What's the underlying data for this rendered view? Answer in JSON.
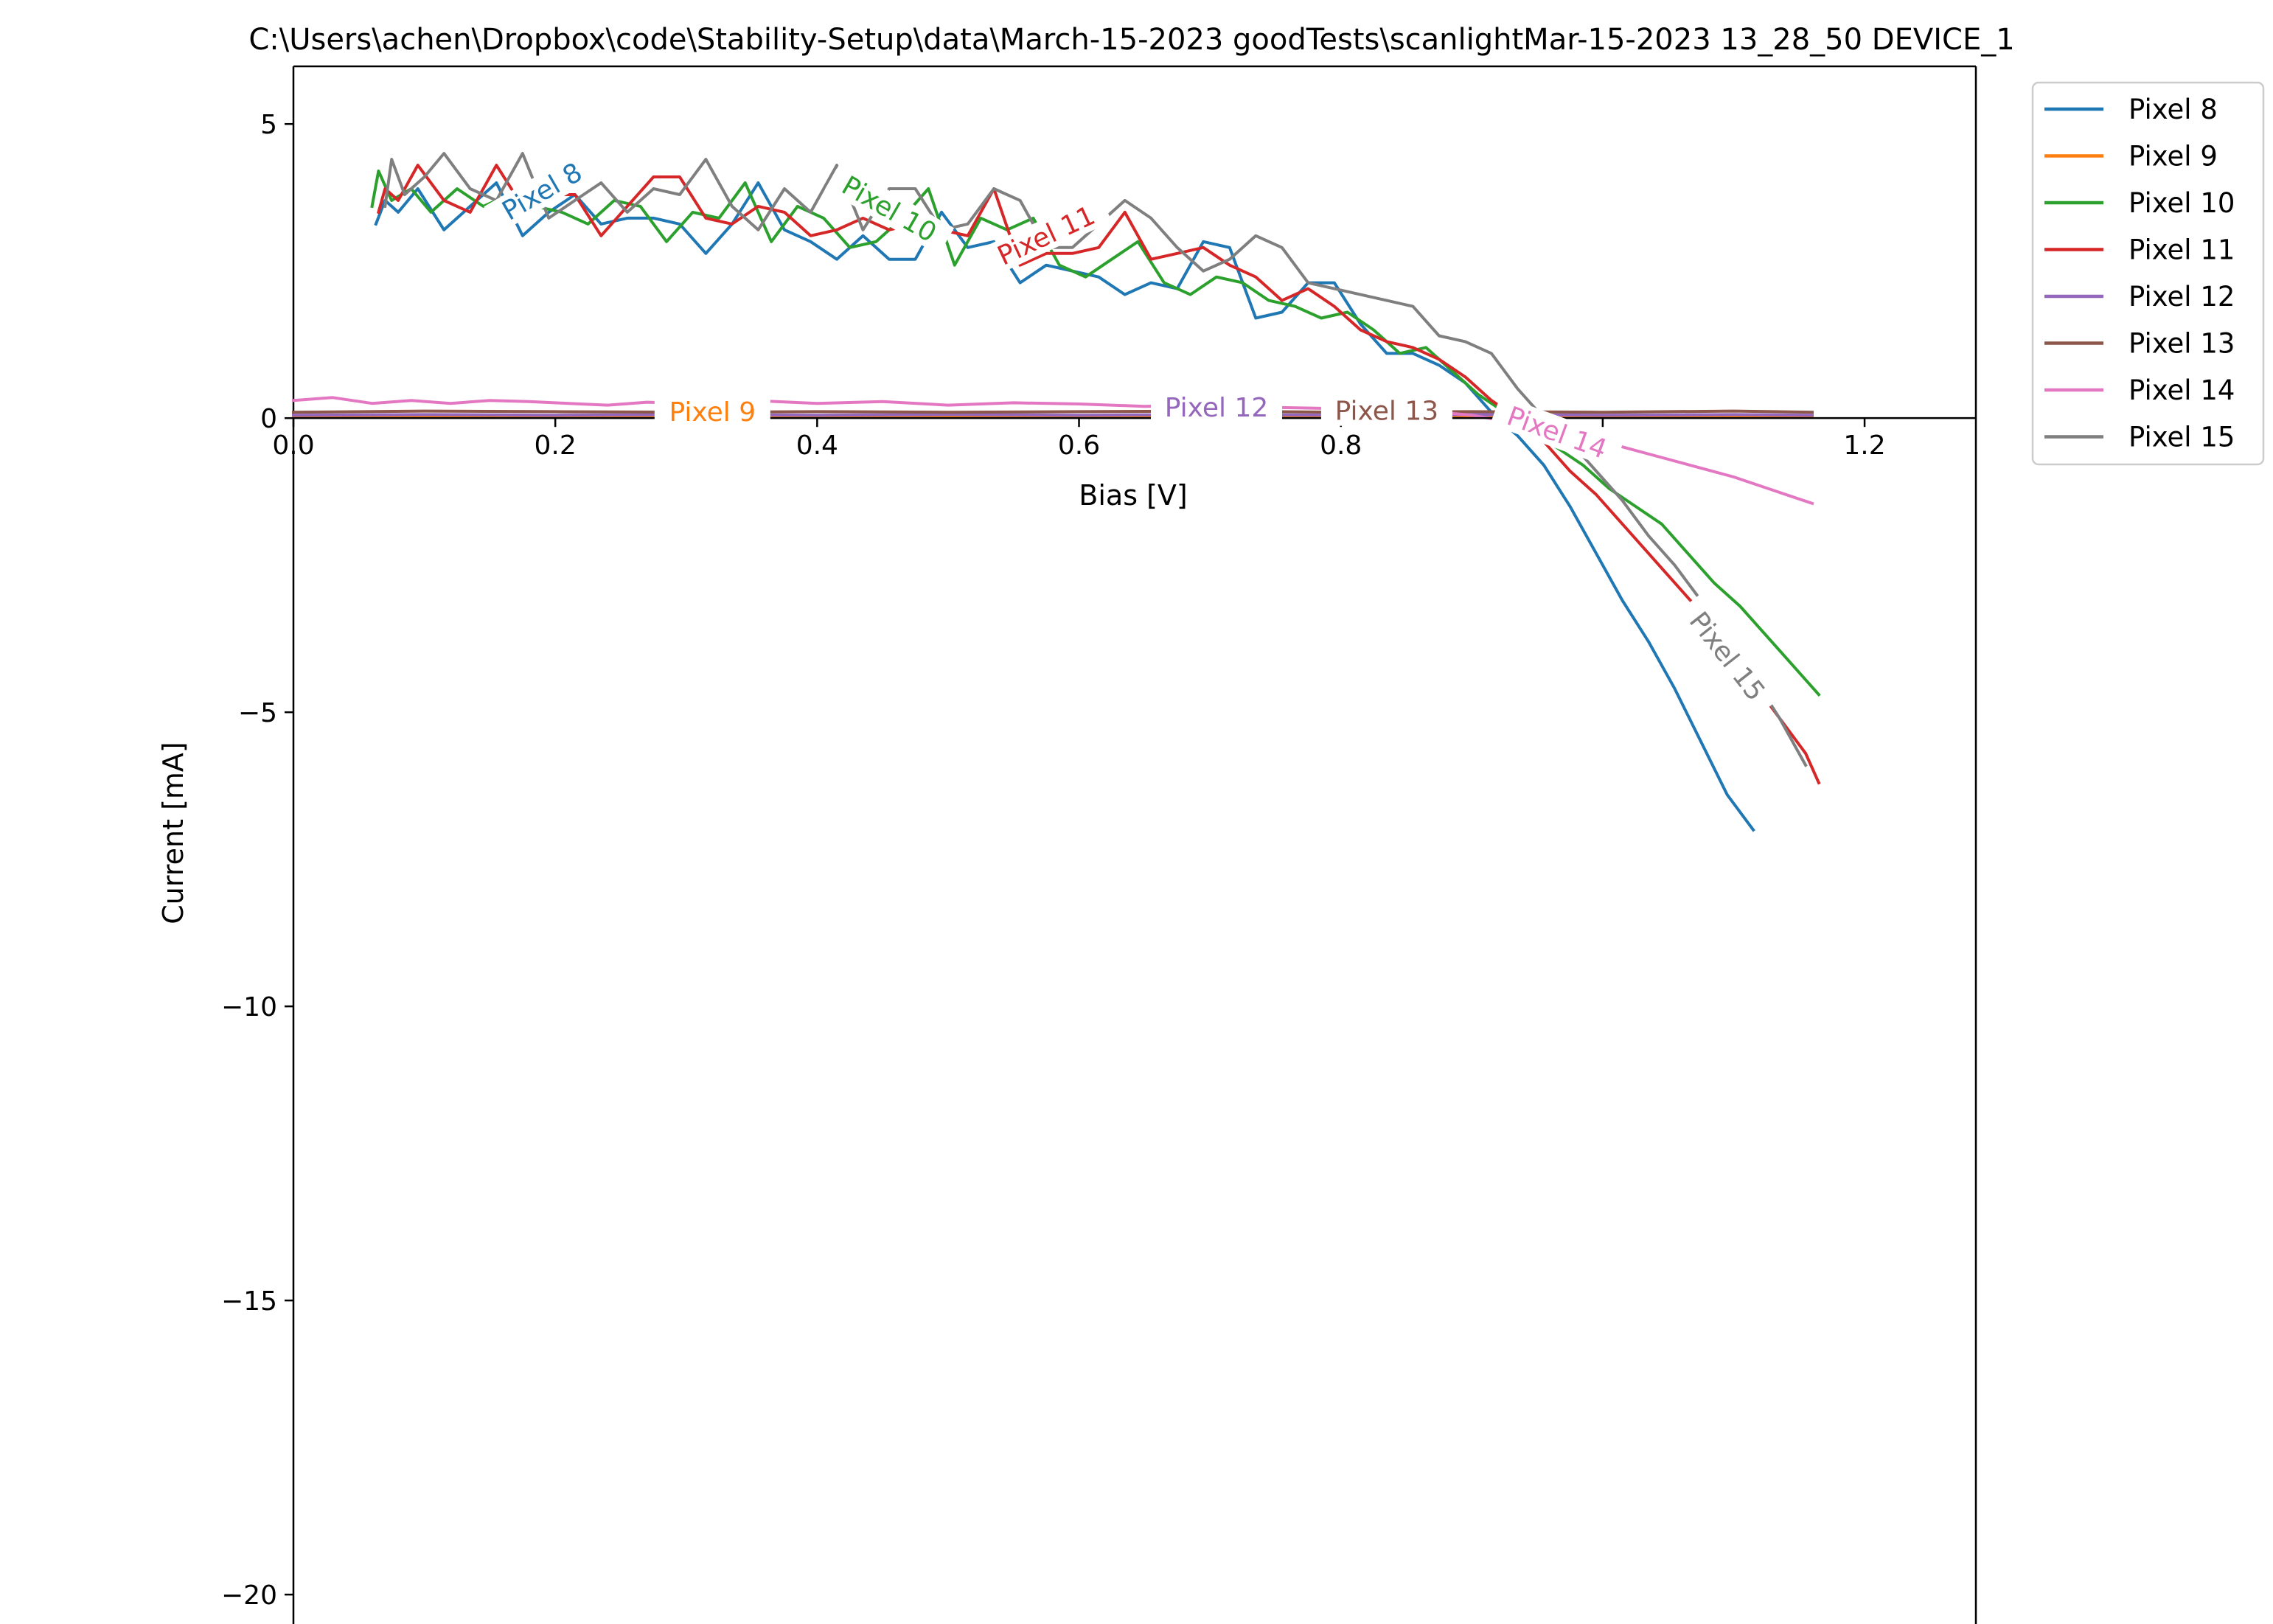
{
  "chart_data": {
    "type": "line",
    "title": "C:\\Users\\achen\\Dropbox\\code\\Stability-Setup\\data\\March-15-2023 goodTests\\scanlightMar-15-2023 13_28_50 DEVICE_1",
    "xlabel": "Bias [V]",
    "ylabel": "Current [mA]",
    "xlim": [
      0.0,
      1.285
    ],
    "ylim": [
      -20.5,
      5.98
    ],
    "xticks": [
      0.0,
      0.2,
      0.4,
      0.6,
      0.8,
      1.0,
      1.2
    ],
    "xtick_labels": [
      "0.0",
      "0.2",
      "0.4",
      "0.6",
      "0.8",
      "",
      "1.2"
    ],
    "yticks": [
      5,
      0,
      -5,
      -10,
      -15,
      -20
    ],
    "ytick_labels": [
      "5",
      "0",
      "−5",
      "−10",
      "−15",
      "−20"
    ],
    "legend_position": "outside-top-right",
    "series": [
      {
        "name": "Pixel 8",
        "color": "#1f77b4",
        "inline_label": {
          "text": "Pixel 8",
          "x": 0.19,
          "y": 3.85,
          "angle": -30
        },
        "x": [
          0.063,
          0.07,
          0.08,
          0.095,
          0.115,
          0.135,
          0.155,
          0.175,
          0.195,
          0.215,
          0.235,
          0.255,
          0.275,
          0.295,
          0.315,
          0.335,
          0.355,
          0.375,
          0.395,
          0.415,
          0.435,
          0.455,
          0.475,
          0.495,
          0.515,
          0.535,
          0.555,
          0.575,
          0.595,
          0.615,
          0.635,
          0.655,
          0.675,
          0.695,
          0.715,
          0.735,
          0.755,
          0.775,
          0.795,
          0.815,
          0.835,
          0.855,
          0.875,
          0.895,
          0.915,
          0.935,
          0.955,
          0.975,
          0.995,
          1.015,
          1.035,
          1.055,
          1.075,
          1.095,
          1.115,
          1.135,
          1.155
        ],
        "y": [
          3.3,
          3.7,
          3.5,
          3.9,
          3.2,
          3.6,
          4.0,
          3.1,
          3.5,
          3.8,
          3.3,
          3.4,
          3.4,
          3.3,
          2.8,
          3.3,
          4.0,
          3.2,
          3.0,
          2.7,
          3.1,
          2.7,
          2.7,
          3.5,
          2.9,
          3.0,
          2.3,
          2.6,
          2.5,
          2.4,
          2.1,
          2.3,
          2.2,
          3.0,
          2.9,
          1.7,
          1.8,
          2.3,
          2.3,
          1.6,
          1.1,
          1.1,
          0.9,
          0.6,
          0.1,
          -0.3,
          -0.8,
          -1.5,
          -2.3,
          -3.1,
          -3.8,
          -4.6,
          -5.5,
          -6.4,
          -7.0,
          null,
          null
        ]
      },
      {
        "name": "Pixel 9",
        "color": "#ff7f0e",
        "inline_label": {
          "text": "Pixel 9",
          "x": 0.32,
          "y": 0.1,
          "angle": 0
        },
        "x": [
          0.0,
          0.1,
          0.2,
          0.3,
          0.4,
          0.5,
          0.6,
          0.7,
          0.8,
          0.9,
          1.0,
          1.1,
          1.16
        ],
        "y": [
          0.02,
          0.04,
          0.03,
          0.03,
          0.02,
          0.03,
          0.02,
          0.03,
          0.02,
          0.04,
          0.03,
          0.04,
          0.03
        ]
      },
      {
        "name": "Pixel 10",
        "color": "#2ca02c",
        "inline_label": {
          "text": "Pixel 10",
          "x": 0.455,
          "y": 3.55,
          "angle": 30
        },
        "x": [
          0.06,
          0.065,
          0.075,
          0.09,
          0.105,
          0.125,
          0.145,
          0.165,
          0.185,
          0.205,
          0.225,
          0.245,
          0.265,
          0.285,
          0.305,
          0.325,
          0.345,
          0.365,
          0.385,
          0.405,
          0.425,
          0.445,
          0.465,
          0.485,
          0.505,
          0.525,
          0.545,
          0.565,
          0.585,
          0.605,
          0.625,
          0.645,
          0.665,
          0.685,
          0.705,
          0.725,
          0.745,
          0.765,
          0.785,
          0.805,
          0.825,
          0.845,
          0.865,
          0.885,
          0.905,
          0.925,
          0.945,
          0.965,
          0.985,
          1.005,
          1.025,
          1.045,
          1.065,
          1.085,
          1.105,
          1.125,
          1.145,
          1.165
        ],
        "y": [
          3.6,
          4.2,
          3.7,
          3.9,
          3.5,
          3.9,
          3.6,
          3.8,
          3.6,
          3.5,
          3.3,
          3.7,
          3.6,
          3.0,
          3.5,
          3.4,
          4.0,
          3.0,
          3.6,
          3.4,
          2.9,
          3.0,
          3.4,
          3.9,
          2.6,
          3.4,
          3.2,
          3.4,
          2.6,
          2.4,
          2.7,
          3.0,
          2.3,
          2.1,
          2.4,
          2.3,
          2.0,
          1.9,
          1.7,
          1.8,
          1.5,
          1.1,
          1.2,
          0.8,
          0.4,
          0.1,
          -0.2,
          -0.5,
          -0.8,
          -1.2,
          -1.5,
          -1.8,
          -2.3,
          -2.8,
          -3.2,
          -3.7,
          -4.2,
          -4.7
        ]
      },
      {
        "name": "Pixel 11",
        "color": "#d62728",
        "inline_label": {
          "text": "Pixel 11",
          "x": 0.575,
          "y": 3.1,
          "angle": -25
        },
        "x": [
          0.065,
          0.07,
          0.08,
          0.095,
          0.115,
          0.135,
          0.155,
          0.175,
          0.195,
          0.215,
          0.235,
          0.255,
          0.275,
          0.295,
          0.315,
          0.335,
          0.355,
          0.375,
          0.395,
          0.415,
          0.435,
          0.455,
          0.475,
          0.495,
          0.515,
          0.535,
          0.555,
          0.575,
          0.595,
          0.615,
          0.635,
          0.655,
          0.675,
          0.695,
          0.715,
          0.735,
          0.755,
          0.775,
          0.795,
          0.815,
          0.835,
          0.855,
          0.875,
          0.895,
          0.915,
          0.935,
          0.955,
          0.975,
          0.995,
          1.015,
          1.035,
          1.055,
          1.075,
          1.095,
          1.115,
          1.135,
          1.155,
          1.165
        ],
        "y": [
          3.5,
          3.9,
          3.7,
          4.3,
          3.7,
          3.5,
          4.3,
          3.6,
          3.8,
          3.8,
          3.1,
          3.6,
          4.1,
          4.1,
          3.4,
          3.3,
          3.6,
          3.5,
          3.1,
          3.2,
          3.4,
          3.2,
          3.3,
          3.2,
          3.1,
          3.9,
          2.6,
          2.8,
          2.8,
          2.9,
          3.5,
          2.7,
          2.8,
          2.9,
          2.6,
          2.4,
          2.0,
          2.2,
          1.9,
          1.5,
          1.3,
          1.2,
          1.0,
          0.7,
          0.3,
          0.0,
          -0.4,
          -0.9,
          -1.3,
          -1.8,
          -2.3,
          -2.8,
          -3.3,
          -3.9,
          -4.5,
          -5.1,
          -5.7,
          -6.2
        ]
      },
      {
        "name": "Pixel 12",
        "color": "#9467bd",
        "inline_label": {
          "text": "Pixel 12",
          "x": 0.705,
          "y": 0.18,
          "angle": 0
        },
        "x": [
          0.0,
          0.1,
          0.2,
          0.3,
          0.4,
          0.5,
          0.6,
          0.7,
          0.8,
          0.9,
          1.0,
          1.1,
          1.16
        ],
        "y": [
          0.05,
          0.06,
          0.05,
          0.06,
          0.05,
          0.06,
          0.05,
          0.06,
          0.05,
          0.06,
          0.05,
          0.06,
          0.05
        ]
      },
      {
        "name": "Pixel 13",
        "color": "#8c564b",
        "inline_label": {
          "text": "Pixel 13",
          "x": 0.835,
          "y": 0.12,
          "angle": 0
        },
        "x": [
          0.0,
          0.1,
          0.2,
          0.3,
          0.4,
          0.5,
          0.6,
          0.7,
          0.8,
          0.9,
          1.0,
          1.1,
          1.16
        ],
        "y": [
          0.1,
          0.12,
          0.11,
          0.1,
          0.11,
          0.1,
          0.11,
          0.12,
          0.1,
          0.11,
          0.1,
          0.12,
          0.1
        ]
      },
      {
        "name": "Pixel 14",
        "color": "#e377c2",
        "inline_label": {
          "text": "Pixel 14",
          "x": 0.965,
          "y": -0.25,
          "angle": 20
        },
        "x": [
          0.0,
          0.03,
          0.06,
          0.09,
          0.12,
          0.15,
          0.18,
          0.21,
          0.24,
          0.27,
          0.3,
          0.35,
          0.4,
          0.45,
          0.5,
          0.55,
          0.6,
          0.65,
          0.7,
          0.75,
          0.8,
          0.85,
          0.9,
          0.95,
          1.0,
          1.05,
          1.1,
          1.16
        ],
        "y": [
          0.3,
          0.35,
          0.25,
          0.3,
          0.25,
          0.3,
          0.28,
          0.25,
          0.22,
          0.27,
          0.25,
          0.3,
          0.25,
          0.28,
          0.22,
          0.26,
          0.24,
          0.2,
          0.22,
          0.18,
          0.16,
          0.15,
          0.05,
          -0.15,
          -0.4,
          -0.7,
          -1.0,
          -1.45
        ]
      },
      {
        "name": "Pixel 15",
        "color": "#7f7f7f",
        "inline_label": {
          "text": "Pixel 15",
          "x": 1.095,
          "y": -4.05,
          "angle": 52
        },
        "x": [
          0.07,
          0.075,
          0.085,
          0.1,
          0.115,
          0.135,
          0.155,
          0.175,
          0.195,
          0.215,
          0.235,
          0.255,
          0.275,
          0.295,
          0.315,
          0.335,
          0.355,
          0.375,
          0.395,
          0.415,
          0.435,
          0.455,
          0.475,
          0.495,
          0.515,
          0.535,
          0.555,
          0.575,
          0.595,
          0.615,
          0.635,
          0.655,
          0.675,
          0.695,
          0.715,
          0.735,
          0.755,
          0.775,
          0.795,
          0.815,
          0.835,
          0.855,
          0.875,
          0.895,
          0.915,
          0.935,
          0.955,
          0.975,
          0.995,
          1.015,
          1.035,
          1.055,
          1.075,
          1.095,
          1.115,
          1.135,
          1.155
        ],
        "y": [
          3.6,
          4.4,
          3.8,
          4.1,
          4.5,
          3.9,
          3.7,
          4.5,
          3.4,
          3.7,
          4.0,
          3.5,
          3.9,
          3.8,
          4.4,
          3.6,
          3.2,
          3.9,
          3.5,
          4.3,
          3.2,
          3.9,
          3.9,
          3.2,
          3.3,
          3.9,
          3.7,
          2.9,
          2.9,
          3.3,
          3.7,
          3.4,
          2.9,
          2.5,
          2.7,
          3.1,
          2.9,
          2.3,
          2.2,
          2.1,
          2.0,
          1.9,
          1.4,
          1.3,
          1.1,
          0.5,
          0.0,
          -0.4,
          -0.9,
          -1.4,
          -2.0,
          -2.5,
          -3.1,
          -3.7,
          -4.4,
          -5.1,
          -5.9
        ]
      }
    ]
  }
}
